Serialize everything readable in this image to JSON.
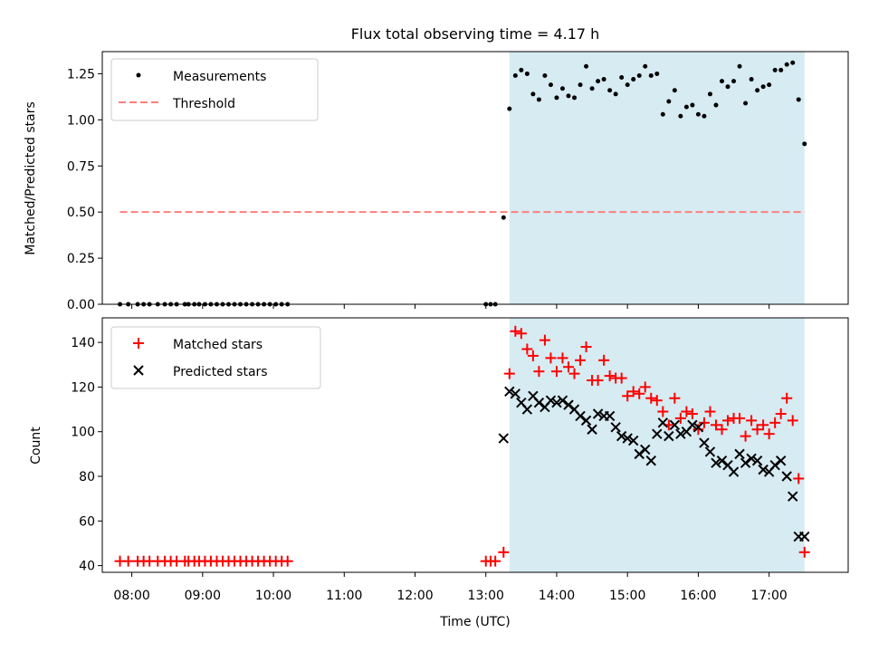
{
  "chart_data": [
    {
      "type": "scatter",
      "title": "Flux total observing time = 4.17 h",
      "ylabel": "Matched/Predicted stars",
      "xlabel": "",
      "xlim": [
        "07:35",
        "18:07"
      ],
      "ylim": [
        0,
        1.37
      ],
      "yticks": [
        0.0,
        0.25,
        0.5,
        0.75,
        1.0,
        1.25
      ],
      "ytick_labels": [
        "0.00",
        "0.25",
        "0.50",
        "0.75",
        "1.00",
        "1.25"
      ],
      "shaded_interval": {
        "start": "13:20",
        "end": "17:30",
        "color": "#add8e6"
      },
      "legend_position": "upper-left",
      "series": [
        {
          "name": "Measurements",
          "kind": "scatter",
          "marker": "dot",
          "color": "#000000",
          "x": [
            "07:50",
            "07:57",
            "08:05",
            "08:10",
            "08:15",
            "08:22",
            "08:28",
            "08:33",
            "08:38",
            "08:45",
            "08:48",
            "08:53",
            "08:57",
            "09:02",
            "09:07",
            "09:12",
            "09:17",
            "09:22",
            "09:27",
            "09:32",
            "09:37",
            "09:42",
            "09:47",
            "09:52",
            "09:57",
            "10:02",
            "10:07",
            "10:12",
            "13:00",
            "13:04",
            "13:08",
            "13:15",
            "13:20",
            "13:25",
            "13:30",
            "13:35",
            "13:40",
            "13:45",
            "13:50",
            "13:55",
            "14:00",
            "14:05",
            "14:10",
            "14:15",
            "14:20",
            "14:25",
            "14:30",
            "14:35",
            "14:40",
            "14:45",
            "14:50",
            "14:55",
            "15:00",
            "15:05",
            "15:10",
            "15:15",
            "15:20",
            "15:25",
            "15:30",
            "15:35",
            "15:40",
            "15:45",
            "15:50",
            "15:55",
            "16:00",
            "16:05",
            "16:10",
            "16:15",
            "16:20",
            "16:25",
            "16:30",
            "16:35",
            "16:40",
            "16:45",
            "16:50",
            "16:55",
            "17:00",
            "17:05",
            "17:10",
            "17:15",
            "17:20",
            "17:25",
            "17:30"
          ],
          "y": [
            0,
            0,
            0,
            0,
            0,
            0,
            0,
            0,
            0,
            0,
            0,
            0,
            0,
            0,
            0,
            0,
            0,
            0,
            0,
            0,
            0,
            0,
            0,
            0,
            0,
            0,
            0,
            0,
            0,
            0,
            0,
            0.47,
            1.06,
            1.24,
            1.27,
            1.25,
            1.14,
            1.11,
            1.24,
            1.19,
            1.12,
            1.17,
            1.13,
            1.12,
            1.19,
            1.29,
            1.17,
            1.21,
            1.22,
            1.16,
            1.14,
            1.23,
            1.19,
            1.22,
            1.24,
            1.29,
            1.24,
            1.25,
            1.03,
            1.1,
            1.16,
            1.02,
            1.07,
            1.08,
            1.03,
            1.02,
            1.14,
            1.08,
            1.21,
            1.18,
            1.21,
            1.29,
            1.09,
            1.22,
            1.16,
            1.18,
            1.19,
            1.27,
            1.27,
            1.3,
            1.31,
            1.11,
            0.87
          ]
        },
        {
          "name": "Threshold",
          "kind": "line",
          "style": "dashed",
          "color": "#ff7f7f",
          "x": [
            "07:50",
            "17:30"
          ],
          "y": [
            0.5,
            0.5
          ]
        }
      ]
    },
    {
      "type": "scatter",
      "title": "",
      "ylabel": "Count",
      "xlabel": "Time (UTC)",
      "xlim": [
        "07:35",
        "18:07"
      ],
      "ylim": [
        37,
        151
      ],
      "yticks": [
        40,
        60,
        80,
        100,
        120,
        140
      ],
      "xticks": [
        "08:00",
        "09:00",
        "10:00",
        "11:00",
        "12:00",
        "13:00",
        "14:00",
        "15:00",
        "16:00",
        "17:00"
      ],
      "shaded_interval": {
        "start": "13:20",
        "end": "17:30",
        "color": "#add8e6"
      },
      "legend_position": "upper-left",
      "series": [
        {
          "name": "Matched stars",
          "marker": "plus",
          "color": "#ff0000",
          "x": [
            "07:50",
            "07:57",
            "08:05",
            "08:10",
            "08:15",
            "08:22",
            "08:28",
            "08:33",
            "08:38",
            "08:45",
            "08:48",
            "08:53",
            "08:57",
            "09:02",
            "09:07",
            "09:12",
            "09:17",
            "09:22",
            "09:27",
            "09:32",
            "09:37",
            "09:42",
            "09:47",
            "09:52",
            "09:57",
            "10:02",
            "10:07",
            "10:12",
            "13:00",
            "13:04",
            "13:08",
            "13:15",
            "13:20",
            "13:25",
            "13:30",
            "13:35",
            "13:40",
            "13:45",
            "13:50",
            "13:55",
            "14:00",
            "14:05",
            "14:10",
            "14:15",
            "14:20",
            "14:25",
            "14:30",
            "14:35",
            "14:40",
            "14:45",
            "14:50",
            "14:55",
            "15:00",
            "15:05",
            "15:10",
            "15:15",
            "15:20",
            "15:25",
            "15:30",
            "15:35",
            "15:40",
            "15:45",
            "15:50",
            "15:55",
            "16:00",
            "16:05",
            "16:10",
            "16:15",
            "16:20",
            "16:25",
            "16:30",
            "16:35",
            "16:40",
            "16:45",
            "16:50",
            "16:55",
            "17:00",
            "17:05",
            "17:10",
            "17:15",
            "17:20",
            "17:25",
            "17:30"
          ],
          "y": [
            42,
            42,
            42,
            42,
            42,
            42,
            42,
            42,
            42,
            42,
            42,
            42,
            42,
            42,
            42,
            42,
            42,
            42,
            42,
            42,
            42,
            42,
            42,
            42,
            42,
            42,
            42,
            42,
            42,
            42,
            42,
            46,
            126,
            145,
            144,
            137,
            134,
            127,
            141,
            133,
            127,
            133,
            129,
            126,
            132,
            138,
            123,
            123,
            132,
            125,
            124,
            124,
            116,
            118,
            117,
            120,
            115,
            114,
            109,
            103,
            115,
            106,
            109,
            108,
            101,
            104,
            109,
            103,
            101,
            105,
            106,
            106,
            98,
            105,
            101,
            103,
            99,
            104,
            108,
            115,
            105,
            79,
            46
          ]
        },
        {
          "name": "Predicted stars",
          "marker": "x",
          "color": "#000000",
          "x": [
            "13:15",
            "13:20",
            "13:25",
            "13:30",
            "13:35",
            "13:40",
            "13:45",
            "13:50",
            "13:55",
            "14:00",
            "14:05",
            "14:10",
            "14:15",
            "14:20",
            "14:25",
            "14:30",
            "14:35",
            "14:40",
            "14:45",
            "14:50",
            "14:55",
            "15:00",
            "15:05",
            "15:10",
            "15:15",
            "15:20",
            "15:25",
            "15:30",
            "15:35",
            "15:40",
            "15:45",
            "15:50",
            "15:55",
            "16:00",
            "16:05",
            "16:10",
            "16:15",
            "16:20",
            "16:25",
            "16:30",
            "16:35",
            "16:40",
            "16:45",
            "16:50",
            "16:55",
            "17:00",
            "17:05",
            "17:10",
            "17:15",
            "17:20",
            "17:25",
            "17:30"
          ],
          "y": [
            97,
            118,
            117,
            113,
            110,
            116,
            113,
            111,
            114,
            113,
            114,
            112,
            110,
            107,
            105,
            101,
            108,
            107,
            107,
            102,
            98,
            97,
            96,
            90,
            92,
            87,
            99,
            104,
            98,
            103,
            99,
            100,
            103,
            102,
            95,
            91,
            86,
            87,
            85,
            82,
            90,
            86,
            88,
            87,
            83,
            82,
            85,
            87,
            80,
            71,
            53,
            53
          ]
        }
      ]
    }
  ]
}
